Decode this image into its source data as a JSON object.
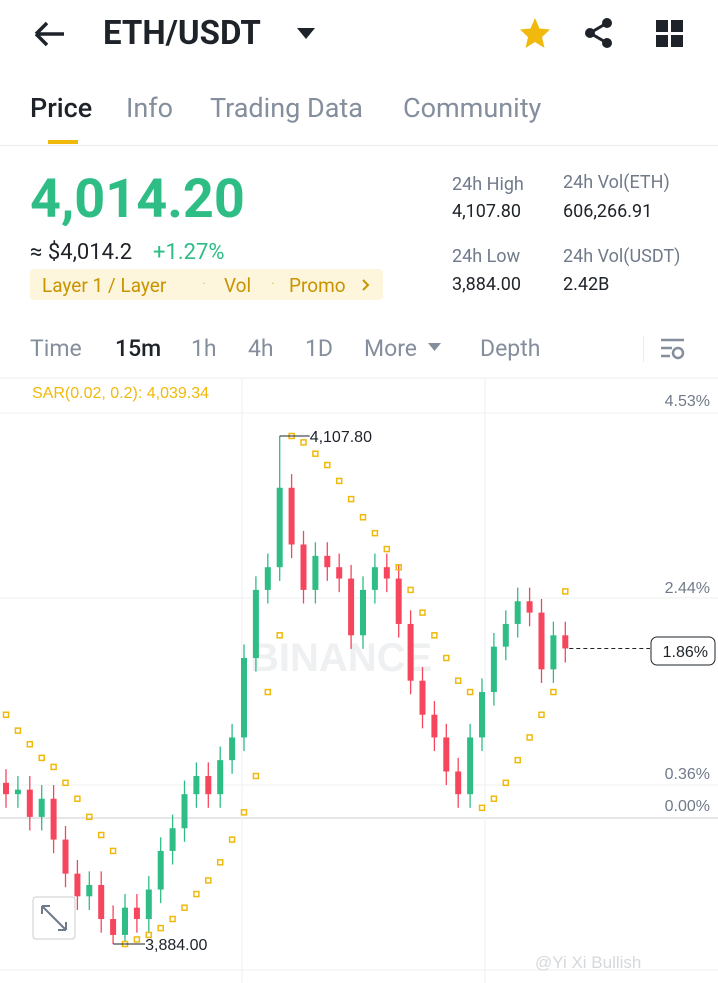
{
  "header": {
    "pair": "ETH/USDT"
  },
  "tabs": [
    "Price",
    "Info",
    "Trading Data",
    "Community"
  ],
  "price": {
    "last": "4,014.20",
    "approx": "≈ $4,014.2",
    "change": "+1.27%",
    "tags": [
      "Layer 1 / Layer",
      "Vol",
      "Promo"
    ]
  },
  "stats": [
    {
      "label": "24h High",
      "value": "4,107.80"
    },
    {
      "label": "24h Vol(ETH)",
      "value": "606,266.91"
    },
    {
      "label": "24h Low",
      "value": "3,884.00"
    },
    {
      "label": "24h Vol(USDT)",
      "value": "2.42B"
    }
  ],
  "intervals": [
    "Time",
    "15m",
    "1h",
    "4h",
    "1D",
    "More",
    "Depth"
  ],
  "chart": {
    "indicator": "SAR(0.02, 0.2): 4,039.34",
    "axis_labels": [
      "4.53%",
      "2.44%",
      "1.86%",
      "0.36%",
      "0.00%"
    ],
    "high_label": "4,107.80",
    "low_label": "3,884.00",
    "watermark": "BINANCE",
    "credit": "@Yi Xi Bullish",
    "candles": [
      [
        3955,
        3961,
        3944,
        3950
      ],
      [
        3950,
        3958,
        3944,
        3952
      ],
      [
        3952,
        3958,
        3934,
        3940
      ],
      [
        3940,
        3954,
        3934,
        3948
      ],
      [
        3948,
        3954,
        3924,
        3930
      ],
      [
        3930,
        3936,
        3909,
        3915
      ],
      [
        3915,
        3921,
        3899,
        3905
      ],
      [
        3905,
        3916,
        3899,
        3910
      ],
      [
        3910,
        3916,
        3889,
        3895
      ],
      [
        3895,
        3901,
        3884.0,
        3888
      ],
      [
        3888,
        3906,
        3885,
        3900
      ],
      [
        3900,
        3906,
        3889,
        3895
      ],
      [
        3895,
        3914,
        3889,
        3908
      ],
      [
        3908,
        3931,
        3902,
        3925
      ],
      [
        3925,
        3941,
        3919,
        3935
      ],
      [
        3935,
        3956,
        3929,
        3950
      ],
      [
        3950,
        3964,
        3944,
        3958
      ],
      [
        3958,
        3964,
        3944,
        3950
      ],
      [
        3950,
        3971,
        3944,
        3965
      ],
      [
        3965,
        3981,
        3959,
        3975
      ],
      [
        3975,
        4016,
        3969,
        4010
      ],
      [
        4010,
        4046,
        4004,
        4040
      ],
      [
        4040,
        4056,
        4034,
        4050
      ],
      [
        4050,
        4107.8,
        4044,
        4085
      ],
      [
        4085,
        4091,
        4054,
        4060
      ],
      [
        4060,
        4066,
        4034,
        4040
      ],
      [
        4040,
        4061,
        4034,
        4055
      ],
      [
        4055,
        4061,
        4044,
        4050
      ],
      [
        4050,
        4056,
        4039,
        4045
      ],
      [
        4045,
        4051,
        4014,
        4020
      ],
      [
        4020,
        4046,
        4014,
        4040
      ],
      [
        4040,
        4056,
        4034,
        4050
      ],
      [
        4050,
        4056,
        4039,
        4045
      ],
      [
        4045,
        4051,
        4019,
        4025
      ],
      [
        4025,
        4031,
        3994,
        4000
      ],
      [
        4000,
        4006,
        3979,
        3985
      ],
      [
        3985,
        3991,
        3969,
        3975
      ],
      [
        3975,
        3981,
        3954,
        3960
      ],
      [
        3960,
        3966,
        3944,
        3950
      ],
      [
        3950,
        3981,
        3944,
        3975
      ],
      [
        3975,
        4001,
        3969,
        3995
      ],
      [
        3995,
        4021,
        3989,
        4015
      ],
      [
        4015,
        4031,
        4009,
        4025
      ],
      [
        4025,
        4041,
        4019,
        4035
      ],
      [
        4035,
        4041,
        4024,
        4030
      ],
      [
        4030,
        4036,
        3999,
        4005
      ],
      [
        4005,
        4026,
        3999,
        4020
      ],
      [
        4020,
        4026,
        4008,
        4014.2
      ]
    ],
    "sar": [
      3985,
      3978,
      3972,
      3966,
      3962,
      3955,
      3948,
      3940,
      3932,
      3925,
      3884,
      3886,
      3888,
      3891,
      3895,
      3900,
      3906,
      3912,
      3920,
      3930,
      3942,
      3958,
      3995,
      4020,
      4107.8,
      4105,
      4100,
      4095,
      4088,
      4080,
      4072,
      4065,
      4058,
      4050,
      4040,
      4030,
      4020,
      4010,
      4000,
      3995,
      3944,
      3948,
      3955,
      3965,
      3975,
      3985,
      3995,
      4039.34
    ]
  }
}
